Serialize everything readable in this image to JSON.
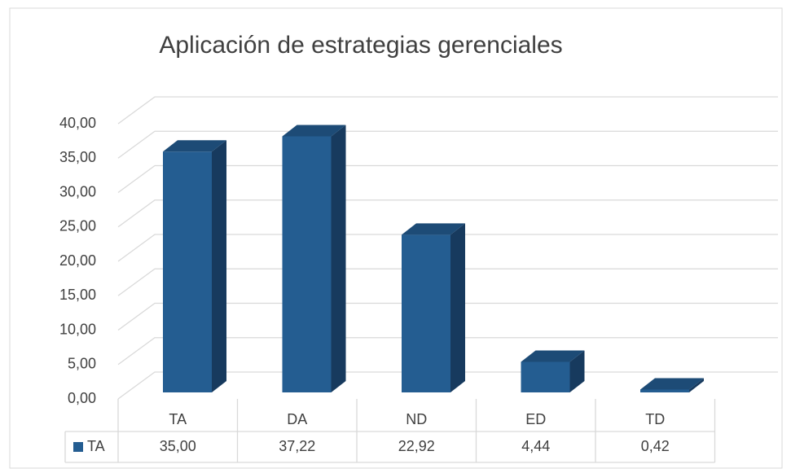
{
  "chart_data": {
    "type": "bar3d",
    "title": "Aplicación de estrategias gerenciales",
    "categories": [
      "TA",
      "DA",
      "ND",
      "ED",
      "TD"
    ],
    "series": [
      {
        "name": "TA",
        "color": "#245d91",
        "values": [
          35.0,
          37.22,
          22.92,
          4.44,
          0.42
        ],
        "value_labels": [
          "35,00",
          "37,22",
          "22,92",
          "4,44",
          "0,42"
        ]
      }
    ],
    "ylim": [
      0,
      40
    ],
    "yticks": [
      {
        "value": 0,
        "label": "0,00"
      },
      {
        "value": 5,
        "label": "5,00"
      },
      {
        "value": 10,
        "label": "10,00"
      },
      {
        "value": 15,
        "label": "15,00"
      },
      {
        "value": 20,
        "label": "20,00"
      },
      {
        "value": 25,
        "label": "25,00"
      },
      {
        "value": 30,
        "label": "30,00"
      },
      {
        "value": 35,
        "label": "35,00"
      },
      {
        "value": 40,
        "label": "40,00"
      }
    ],
    "grid": true,
    "data_table": true
  }
}
